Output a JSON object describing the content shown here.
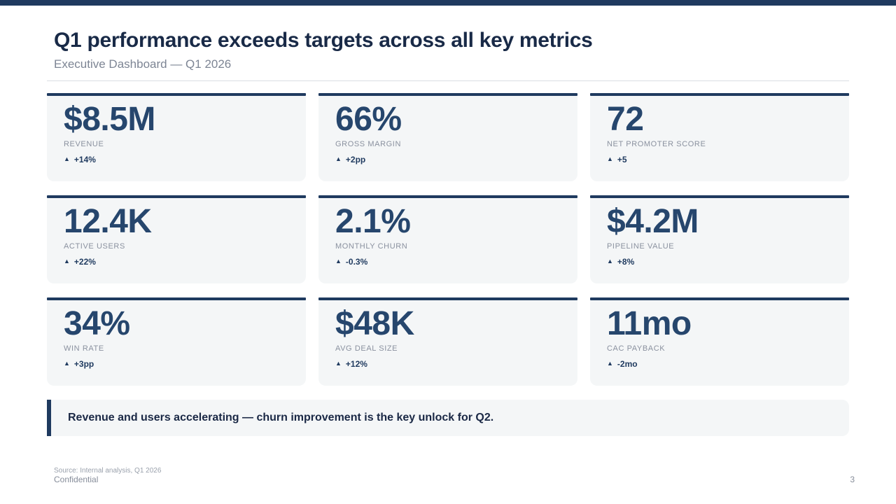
{
  "slide": {
    "title": "Q1 performance exceeds targets across all key metrics",
    "subtitle": "Executive Dashboard — Q1 2026"
  },
  "kpis": [
    {
      "value": "$8.5M",
      "label": "REVENUE",
      "delta": "+14%"
    },
    {
      "value": "66%",
      "label": "GROSS MARGIN",
      "delta": "+2pp"
    },
    {
      "value": "72",
      "label": "NET PROMOTER SCORE",
      "delta": "+5"
    },
    {
      "value": "12.4K",
      "label": "ACTIVE USERS",
      "delta": "+22%"
    },
    {
      "value": "2.1%",
      "label": "MONTHLY CHURN",
      "delta": "-0.3%"
    },
    {
      "value": "$4.2M",
      "label": "PIPELINE VALUE",
      "delta": "+8%"
    },
    {
      "value": "34%",
      "label": "WIN RATE",
      "delta": "+3pp"
    },
    {
      "value": "$48K",
      "label": "AVG DEAL SIZE",
      "delta": "+12%"
    },
    {
      "value": "11mo",
      "label": "CAC PAYBACK",
      "delta": "-2mo"
    }
  ],
  "callout": {
    "text": "Revenue and users accelerating — churn improvement is the key unlock for Q2."
  },
  "footer": {
    "source": "Source: Internal analysis, Q1 2026",
    "classification": "Confidential",
    "page_number": "3"
  },
  "icons": {
    "triangle_up": "▲"
  },
  "colors": {
    "accent_navy": "#1f3a5f",
    "value_navy": "#26466d",
    "title_navy": "#192a47",
    "card_bg": "#f4f6f7",
    "label_gray": "#8a919f",
    "subtitle_gray": "#7d8594",
    "divider_gray": "#d9dde3"
  }
}
